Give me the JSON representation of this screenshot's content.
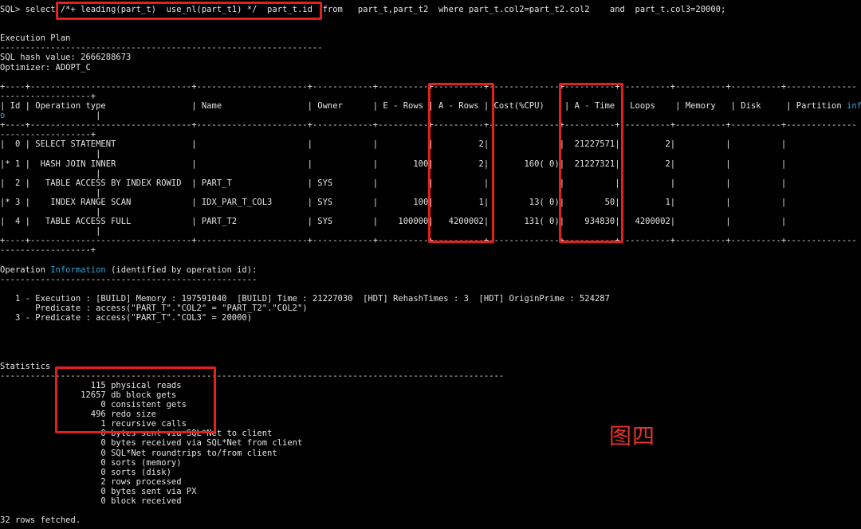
{
  "blocks": [
    {
      "lines": [
        "SQL> select /*+ leading(part_t)  use_nl(part_t1) */  part_t.id  from   part_t,part_t2  where part_t.col2=part_t2.col2    and  part_t.col3=20000;"
      ]
    },
    {
      "lines": [
        "Execution Plan",
        "----------------------------------------------------------------",
        "SQL hash value: 2666288673",
        "Optimizer: ADOPT_C"
      ]
    },
    {
      "lines": [
        "+----+--------------------------------+----------------------+------------+----------+----------+--------------+----------+----------+----------+----------+--------------",
        "------------------+",
        [
          "| Id | Operation type                 | Name                 | Owner      | E - Rows | A - Rows | Cost(%CPU)    | A - Time | Loops    | Memory   | Disk     | Partition ",
          {
            "text": "inf",
            "color": "#2aa8d8"
          }
        ],
        [
          {
            "text": "o",
            "color": "#2aa8d8"
          },
          "                  |"
        ],
        "+----+--------------------------------+----------------------+------------+----------+----------+--------------+----------+----------+----------+----------+--------------",
        "------------------+",
        "|  0 | SELECT STATEMENT               |                      |            |          |         2|              |  21227571|         2|          |          |",
        "                   |",
        "|* 1 |  HASH JOIN INNER               |                      |            |       100|         2|       160( 0)|  21227321|         2|          |          |",
        "                   |",
        "|  2 |   TABLE ACCESS BY INDEX ROWID  | PART_T               | SYS        |          |          |              |          |          |          |          |",
        "                   |",
        "|* 3 |    INDEX RANGE SCAN            | IDX_PAR_T_COL3       | SYS        |       100|         1|        13( 0)|        50|         1|          |          |",
        "                   |",
        "|  4 |   TABLE ACCESS FULL            | PART_T2              | SYS        |    100000|   4200002|       131( 0)|    934830|   4200002|          |          |",
        "                   |",
        "+----+--------------------------------+----------------------+------------+----------+----------+--------------+----------+----------+----------+----------+--------------",
        "------------------+"
      ]
    },
    {
      "lines": [
        [
          "Operation ",
          {
            "text": "Information",
            "color": "#2aa8d8"
          },
          " (identified by operation id):"
        ],
        "---------------------------------------------------"
      ]
    },
    {
      "lines": [
        "   1 - Execution : [BUILD] Memory : 197591040  [BUILD] Time : 21227030  [HDT] RehashTimes : 3  [HDT] OriginPrime : 524287",
        "       Predicate : access(\"PART_T\".\"COL2\" = \"PART_T2\".\"COL2\")",
        "   3 - Predicate : access(\"PART_T\".\"COL3\" = 20000)"
      ]
    },
    {
      "lines": [
        "Statistics",
        "----------------------------------------------------------------------------------------------------",
        "                  115 physical reads",
        "                12657 db block gets",
        "                    0 consistent gets",
        "                  496 redo size",
        "                    1 recursive calls",
        "                    0 bytes sent via SQL*Net to client",
        "                    0 bytes received via SQL*Net from client",
        "                    0 SQL*Net roundtrips to/from client",
        "                    0 sorts (memory)",
        "                    0 sorts (disk)",
        "                    2 rows processed",
        "                    0 bytes sent via PX",
        "                    0 block received"
      ]
    },
    {
      "lines": [
        "32 rows fetched."
      ]
    }
  ],
  "annotation": "图四"
}
